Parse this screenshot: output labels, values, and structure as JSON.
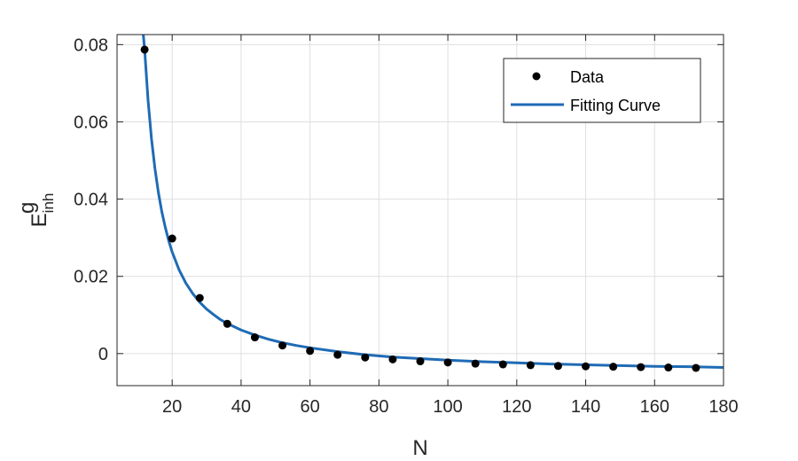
{
  "chart_data": {
    "type": "scatter",
    "title": "",
    "xlabel": "N",
    "ylabel": {
      "base": "E",
      "sup": "g",
      "sub": "inh"
    },
    "xlim": [
      4,
      180
    ],
    "ylim": [
      -0.0083,
      0.0826
    ],
    "xticks": [
      20,
      40,
      60,
      80,
      100,
      120,
      140,
      160,
      180
    ],
    "xtick_labels": [
      "20",
      "40",
      "60",
      "80",
      "100",
      "120",
      "140",
      "160",
      "180"
    ],
    "yticks": [
      0,
      0.02,
      0.04,
      0.06,
      0.08
    ],
    "ytick_labels": [
      "0",
      "0.02",
      "0.04",
      "0.06",
      "0.08"
    ],
    "grid": true,
    "legend_position": "top-right",
    "series": [
      {
        "name": "Data",
        "kind": "markers",
        "color": "#000000",
        "x": [
          12,
          20,
          28,
          36,
          44,
          52,
          60,
          68,
          76,
          84,
          92,
          100,
          108,
          116,
          124,
          132,
          140,
          148,
          156,
          164,
          172
        ],
        "y": [
          0.0787,
          0.0298,
          0.0144,
          0.0077,
          0.0042,
          0.0021,
          0.0007,
          -0.0003,
          -0.001,
          -0.0015,
          -0.002,
          -0.0023,
          -0.0026,
          -0.0028,
          -0.003,
          -0.0032,
          -0.0033,
          -0.0034,
          -0.0035,
          -0.0036,
          -0.0037
        ]
      },
      {
        "name": "Fitting Curve",
        "kind": "line",
        "color": "#1f6bb5",
        "x": [
          11.4,
          12,
          13,
          14,
          15,
          16,
          17,
          18,
          19,
          20,
          22,
          24,
          26,
          28,
          30,
          32,
          34,
          36,
          40,
          44,
          48,
          52,
          56,
          60,
          68,
          76,
          84,
          92,
          100,
          110,
          120,
          130,
          140,
          150,
          160,
          170,
          180
        ],
        "y": [
          0.0848,
          0.0788,
          0.0656,
          0.0556,
          0.0479,
          0.0417,
          0.0367,
          0.0327,
          0.0292,
          0.0263,
          0.0217,
          0.0182,
          0.0155,
          0.0133,
          0.0115,
          0.0101,
          0.0088,
          0.0078,
          0.0061,
          0.0048,
          0.0037,
          0.0028,
          0.0021,
          0.0015,
          0.0005,
          -0.0003,
          -0.0009,
          -0.0013,
          -0.0017,
          -0.0021,
          -0.0024,
          -0.0027,
          -0.0029,
          -0.0031,
          -0.0033,
          -0.0034,
          -0.0036
        ]
      }
    ]
  }
}
